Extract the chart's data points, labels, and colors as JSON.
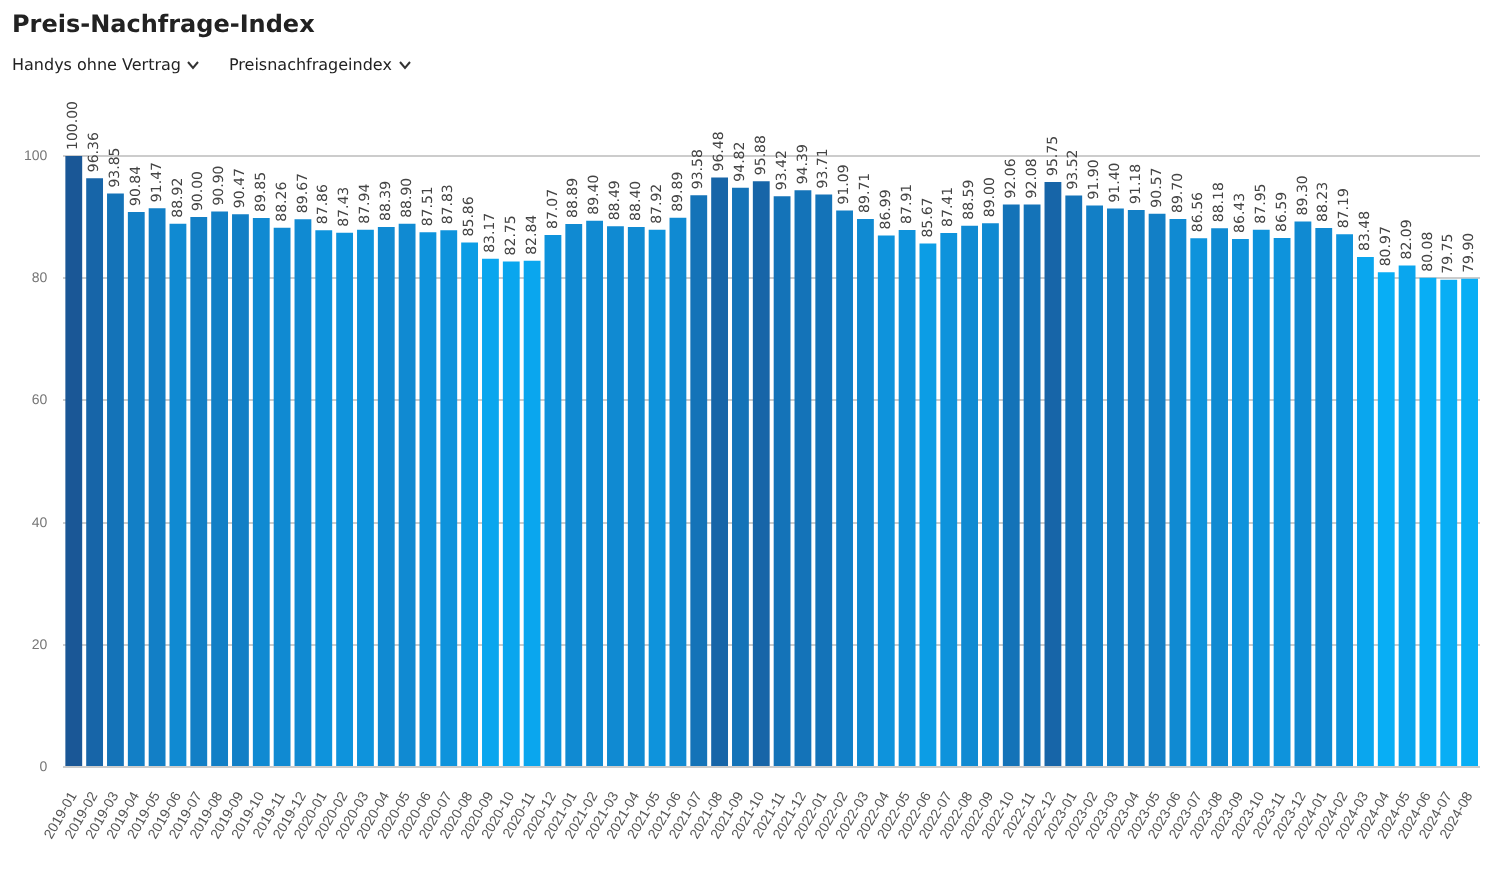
{
  "chart_data": {
    "type": "bar",
    "title": "Preis-Nachfrage-Index",
    "annotations": [
      "Handys ohne Vertrag",
      "Preisnachfrageindex"
    ],
    "categories": [
      "2019-01",
      "2019-02",
      "2019-03",
      "2019-04",
      "2019-05",
      "2019-06",
      "2019-07",
      "2019-08",
      "2019-09",
      "2019-10",
      "2019-11",
      "2019-12",
      "2020-01",
      "2020-02",
      "2020-03",
      "2020-04",
      "2020-05",
      "2020-06",
      "2020-07",
      "2020-08",
      "2020-09",
      "2020-10",
      "2020-11",
      "2020-12",
      "2021-01",
      "2021-02",
      "2021-03",
      "2021-04",
      "2021-05",
      "2021-06",
      "2021-07",
      "2021-08",
      "2021-09",
      "2021-10",
      "2021-11",
      "2021-12",
      "2022-01",
      "2022-02",
      "2022-03",
      "2022-04",
      "2022-05",
      "2022-06",
      "2022-07",
      "2022-08",
      "2022-09",
      "2022-10",
      "2022-11",
      "2022-12",
      "2023-01",
      "2023-02",
      "2023-03",
      "2023-04",
      "2023-05",
      "2023-06",
      "2023-07",
      "2023-08",
      "2023-09",
      "2023-10",
      "2023-11",
      "2023-12",
      "2024-01",
      "2024-02",
      "2024-03",
      "2024-04",
      "2024-05",
      "2024-06",
      "2024-07",
      "2024-08"
    ],
    "values": [
      100.0,
      96.36,
      93.85,
      90.84,
      91.47,
      88.92,
      90.0,
      90.9,
      90.47,
      89.85,
      88.26,
      89.67,
      87.86,
      87.43,
      87.94,
      88.39,
      88.9,
      87.51,
      87.83,
      85.86,
      83.17,
      82.75,
      82.84,
      87.07,
      88.89,
      89.4,
      88.49,
      88.4,
      87.92,
      89.89,
      93.58,
      96.48,
      94.82,
      95.88,
      93.42,
      94.39,
      93.71,
      91.09,
      89.71,
      86.99,
      87.91,
      85.67,
      87.41,
      88.59,
      89.0,
      92.06,
      92.08,
      95.75,
      93.52,
      91.9,
      91.4,
      91.18,
      90.57,
      89.7,
      86.56,
      88.18,
      86.43,
      87.95,
      86.59,
      89.3,
      88.23,
      87.19,
      83.48,
      80.97,
      82.09,
      80.08,
      79.75,
      79.9
    ],
    "colors": [
      "#1a5796",
      "#1765a8",
      "#1473b8",
      "#127fc6",
      "#127fc6",
      "#108ad2",
      "#127fc6",
      "#127fc6",
      "#127fc6",
      "#108ad2",
      "#108ad2",
      "#108ad2",
      "#0e93dc",
      "#0e93dc",
      "#0e93dc",
      "#108ad2",
      "#108ad2",
      "#0e93dc",
      "#0e93dc",
      "#0c9de5",
      "#0aa6ee",
      "#0aa6ee",
      "#0aa6ee",
      "#0e93dc",
      "#108ad2",
      "#108ad2",
      "#108ad2",
      "#108ad2",
      "#0e93dc",
      "#108ad2",
      "#1473b8",
      "#1765a8",
      "#1473b8",
      "#1765a8",
      "#1473b8",
      "#1473b8",
      "#1473b8",
      "#127fc6",
      "#108ad2",
      "#0e93dc",
      "#0e93dc",
      "#0c9de5",
      "#0e93dc",
      "#108ad2",
      "#108ad2",
      "#1473b8",
      "#1473b8",
      "#1765a8",
      "#1473b8",
      "#127fc6",
      "#127fc6",
      "#127fc6",
      "#127fc6",
      "#108ad2",
      "#0e93dc",
      "#108ad2",
      "#0e93dc",
      "#0e93dc",
      "#0e93dc",
      "#108ad2",
      "#108ad2",
      "#0e93dc",
      "#0aa6ee",
      "#08aef5",
      "#0aa6ee",
      "#08aef5",
      "#08aef5",
      "#08aef5"
    ],
    "value_labels": [
      "100.00",
      "96.36",
      "93.85",
      "90.84",
      "91.47",
      "88.92",
      "90.00",
      "90.90",
      "90.47",
      "89.85",
      "88.26",
      "89.67",
      "87.86",
      "87.43",
      "87.94",
      "88.39",
      "88.90",
      "87.51",
      "87.83",
      "85.86",
      "83.17",
      "82.75",
      "82.84",
      "87.07",
      "88.89",
      "89.40",
      "88.49",
      "88.40",
      "87.92",
      "89.89",
      "93.58",
      "96.48",
      "94.82",
      "95.88",
      "93.42",
      "94.39",
      "93.71",
      "91.09",
      "89.71",
      "86.99",
      "87.91",
      "85.67",
      "87.41",
      "88.59",
      "89.00",
      "92.06",
      "92.08",
      "95.75",
      "93.52",
      "91.90",
      "91.40",
      "91.18",
      "90.57",
      "89.70",
      "86.56",
      "88.18",
      "86.43",
      "87.95",
      "86.59",
      "89.30",
      "88.23",
      "87.19",
      "83.48",
      "80.97",
      "82.09",
      "80.08",
      "79.75",
      "79.90"
    ],
    "ylim": [
      0,
      100
    ],
    "yticks": [
      0,
      20,
      40,
      60,
      80,
      100
    ],
    "grid": "y",
    "legend": false
  }
}
